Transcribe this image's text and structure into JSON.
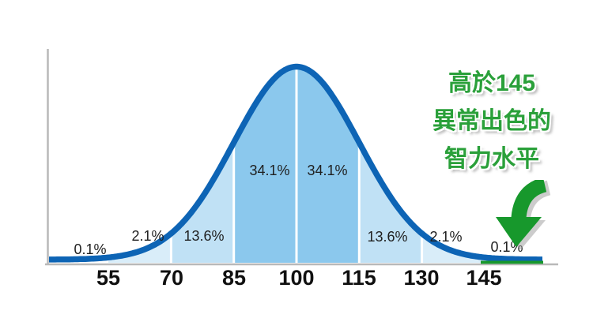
{
  "figure": {
    "background": "#ffffff",
    "description": "Bell curve of the normal distribution of IQ scores with percentage of population per standard-deviation band"
  },
  "chart_data": {
    "type": "area",
    "title": "",
    "xlabel": "",
    "ylabel": "",
    "mean": 100,
    "sd": 15,
    "grid": false,
    "legend": false,
    "x_ticks": [
      55,
      70,
      85,
      100,
      115,
      130,
      145
    ],
    "sections": [
      {
        "range": "below-55",
        "from": null,
        "to": 55,
        "percent": "0.1%",
        "fill": null
      },
      {
        "range": "55-70",
        "from": 55,
        "to": 70,
        "percent": "2.1%",
        "fill": "#d9edf9"
      },
      {
        "range": "70-85",
        "from": 70,
        "to": 85,
        "percent": "13.6%",
        "fill": "#c0e1f5"
      },
      {
        "range": "85-100",
        "from": 85,
        "to": 100,
        "percent": "34.1%",
        "fill": "#8bc8ed"
      },
      {
        "range": "100-115",
        "from": 100,
        "to": 115,
        "percent": "34.1%",
        "fill": "#8bc8ed"
      },
      {
        "range": "115-130",
        "from": 115,
        "to": 130,
        "percent": "13.6%",
        "fill": "#c0e1f5"
      },
      {
        "range": "130-145",
        "from": 130,
        "to": 145,
        "percent": "2.1%",
        "fill": "#d9edf9"
      },
      {
        "range": "above-145",
        "from": 145,
        "to": null,
        "percent": "0.1%",
        "fill": null,
        "highlight": "green-underline"
      }
    ]
  },
  "annotation": {
    "lines": [
      "高於145",
      "異常出色的",
      "智力水平"
    ],
    "color": "#2aa03a"
  },
  "colors": {
    "curve_stroke": "#0d64b5",
    "fill_34": "#8bc8ed",
    "fill_13": "#c0e1f5",
    "fill_2": "#d9edf9",
    "divider": "#ffffff",
    "axis": "#b9b9b9",
    "highlight_green": "#17982c",
    "annotation_green": "#2aa03a",
    "arrow_green": "#17982c",
    "arrow_shadow": "#9a9a9a",
    "label_text": "#1f1f1f",
    "tick_text": "#101010"
  }
}
